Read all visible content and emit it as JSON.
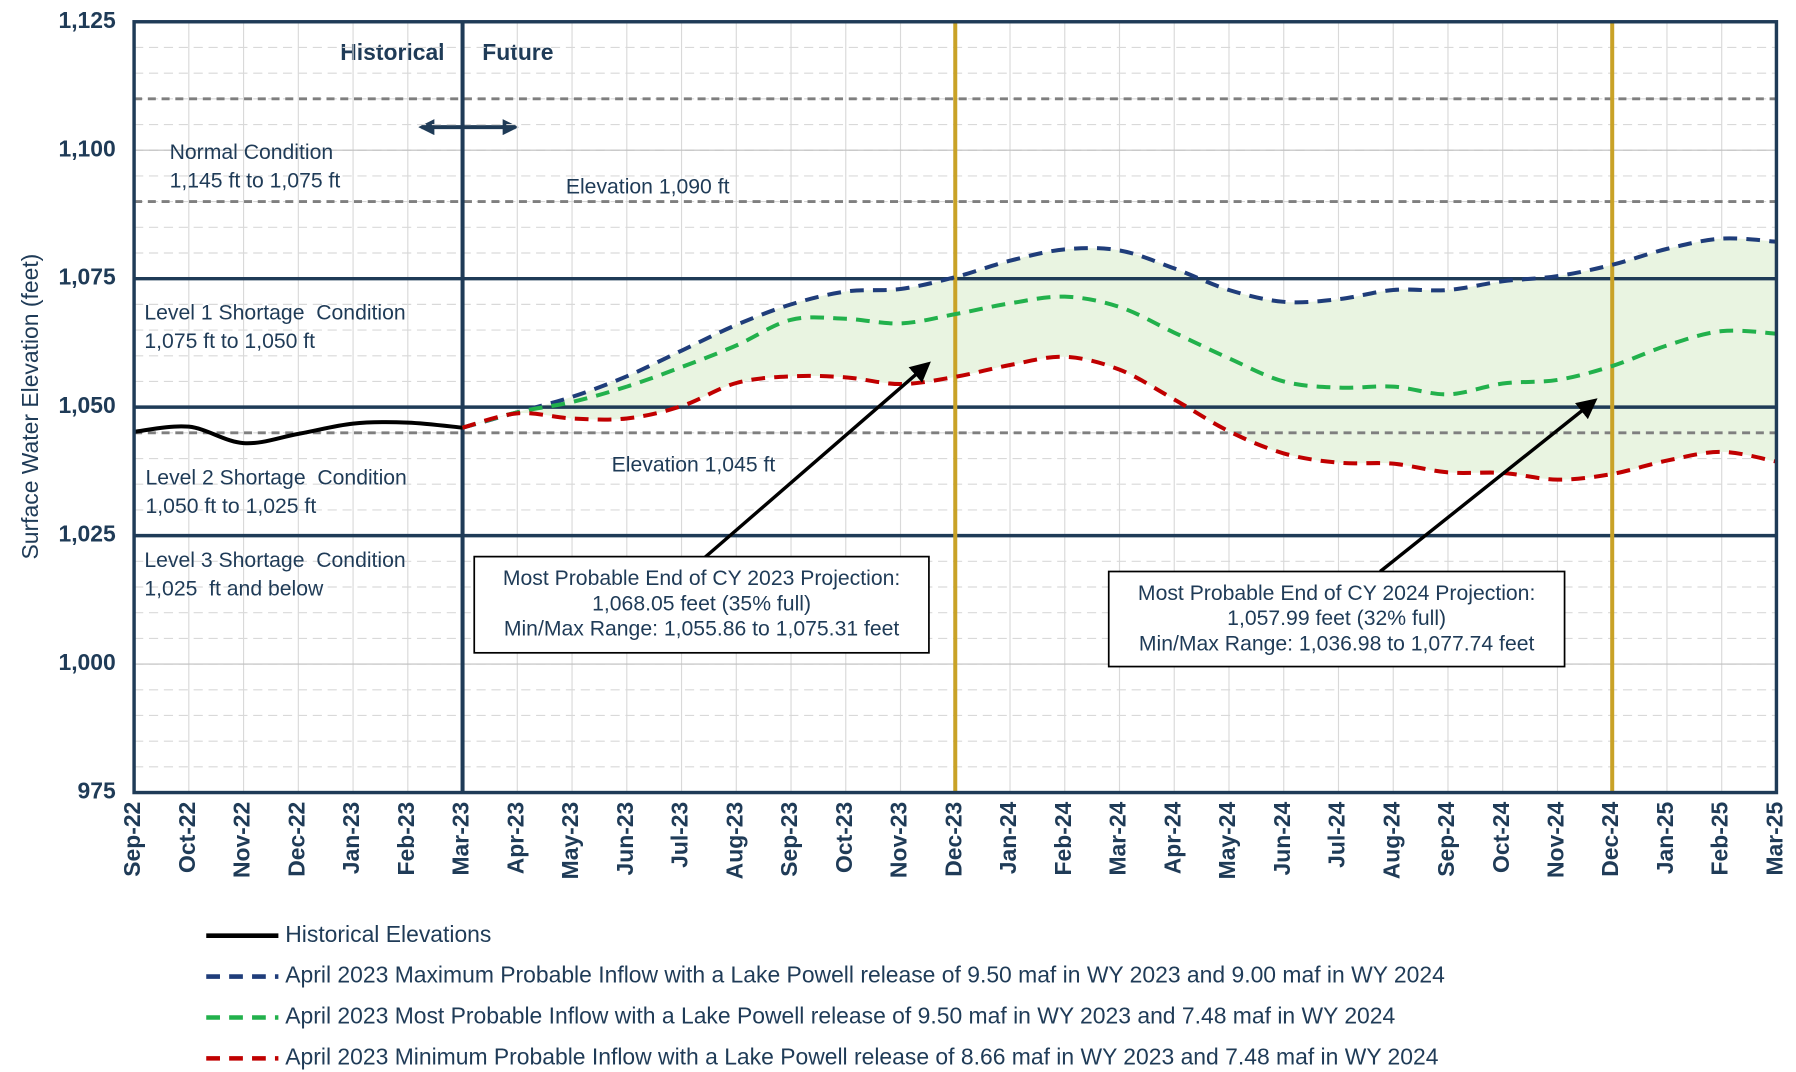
{
  "chart_data": {
    "type": "line",
    "y_label": "Surface Water Elevation (feet)",
    "categories": [
      "Sep-22",
      "Oct-22",
      "Nov-22",
      "Dec-22",
      "Jan-23",
      "Feb-23",
      "Mar-23",
      "Apr-23",
      "May-23",
      "Jun-23",
      "Jul-23",
      "Aug-23",
      "Sep-23",
      "Oct-23",
      "Nov-23",
      "Dec-23",
      "Jan-24",
      "Feb-24",
      "Mar-24",
      "Apr-24",
      "May-24",
      "Jun-24",
      "Jul-24",
      "Aug-24",
      "Sep-24",
      "Oct-24",
      "Nov-24",
      "Dec-24",
      "Jan-25",
      "Feb-25",
      "Mar-25"
    ],
    "series": [
      {
        "name": "Historical Elevations",
        "color": "#000000",
        "dashed": false,
        "values": [
          1045.2,
          1046.2,
          1043,
          1044.8,
          1046.8,
          1047,
          1046,
          null,
          null,
          null,
          null,
          null,
          null,
          null,
          null,
          null,
          null,
          null,
          null,
          null,
          null,
          null,
          null,
          null,
          null,
          null,
          null,
          null,
          null,
          null,
          null
        ]
      },
      {
        "name": "April 2023 Maximum Probable Inflow with a Lake Powell release of 9.50 maf in WY 2023 and 9.00 maf in WY 2024",
        "color": "#1f3d7a",
        "dashed": true,
        "values": [
          null,
          null,
          null,
          null,
          null,
          null,
          1046,
          1049,
          1052,
          1056,
          1061,
          1066,
          1070,
          1072.5,
          1073,
          1075.3,
          1078.5,
          1080.7,
          1080.5,
          1077,
          1072.8,
          1070.5,
          1071,
          1072.8,
          1072.8,
          1074.5,
          1075.5,
          1077.7,
          1080.8,
          1082.8,
          1082.2
        ]
      },
      {
        "name": "April 2023 Most Probable Inflow with a Lake Powell release of 9.50 maf in WY 2023 and 7.48 maf in WY 2024",
        "color": "#22b14c",
        "dashed": true,
        "values": [
          null,
          null,
          null,
          null,
          null,
          null,
          1046,
          1049,
          1051,
          1054,
          1057.8,
          1062,
          1067,
          1067.2,
          1066.3,
          1068.1,
          1070.2,
          1071.5,
          1069.5,
          1064.5,
          1059.5,
          1055,
          1053.8,
          1054,
          1052.5,
          1054.6,
          1055.3,
          1058,
          1062,
          1064.8,
          1064.3
        ]
      },
      {
        "name": "April 2023 Minimum Probable Inflow with a Lake Powell release of 8.66 maf in WY 2023 and 7.48 maf in WY 2024",
        "color": "#c00000",
        "dashed": true,
        "values": [
          null,
          null,
          null,
          null,
          null,
          null,
          1046,
          1048.8,
          1047.8,
          1047.8,
          1050.2,
          1054.7,
          1056,
          1055.8,
          1054.5,
          1055.9,
          1058.2,
          1059.8,
          1057.3,
          1051.5,
          1045.3,
          1041,
          1039.2,
          1039,
          1037.3,
          1037.2,
          1035.9,
          1037,
          1039.6,
          1041.3,
          1039.4
        ]
      }
    ],
    "band_color": "#e9f4e1",
    "ylim": [
      975,
      1125
    ],
    "yticks": [
      975,
      {
        "value": 1000,
        "label": "1,000"
      },
      {
        "value": 1025,
        "label": "1,025"
      },
      {
        "value": 1050,
        "label": "1,050"
      },
      {
        "value": 1075,
        "label": "1,075"
      },
      {
        "value": 1100,
        "label": "1,100"
      },
      {
        "value": 1125,
        "label": "1,125"
      }
    ],
    "minor_grid_step": 5,
    "grid": true,
    "reference_lines": [
      {
        "value": 1110,
        "style": "dashed"
      },
      {
        "value": 1090,
        "style": "dashed",
        "label": "Elevation 1,090 ft"
      },
      {
        "value": 1075,
        "style": "solid"
      },
      {
        "value": 1050,
        "style": "solid"
      },
      {
        "value": 1045,
        "style": "dashed",
        "label": "Elevation 1,045 ft"
      },
      {
        "value": 1025,
        "style": "solid"
      }
    ],
    "vertical_lines": [
      {
        "category": "Mar-23",
        "color": "#1f3b57"
      },
      {
        "category": "Dec-23",
        "color": "#c9a227"
      },
      {
        "category": "Dec-24",
        "color": "#c9a227"
      }
    ],
    "period_labels": [
      "Historical",
      "Future"
    ],
    "zones": [
      {
        "name": "Normal Condition",
        "range": "1,145 ft to 1,075 ft"
      },
      {
        "name": "Level 1 Shortage  Condition",
        "range": "1,075 ft to 1,050 ft"
      },
      {
        "name": "Level 2 Shortage  Condition",
        "range": "1,050 ft to 1,025 ft"
      },
      {
        "name": "Level 3 Shortage  Condition",
        "range": "1,025  ft and below"
      }
    ],
    "callouts": [
      {
        "lines": [
          "Most Probable End of CY 2023 Projection:",
          "1,068.05 feet (35% full)",
          "Min/Max Range: 1,055.86 to 1,075.31 feet"
        ]
      },
      {
        "lines": [
          "Most Probable End of CY 2024 Projection:",
          "1,057.99 feet (32% full)",
          "Min/Max Range: 1,036.98 to 1,077.74 feet"
        ]
      }
    ]
  }
}
